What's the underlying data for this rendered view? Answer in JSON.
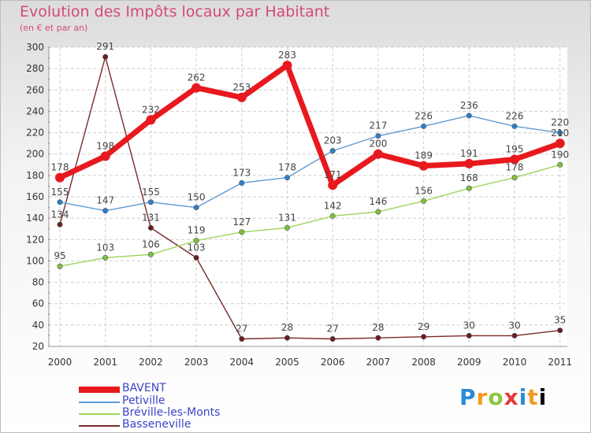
{
  "chart_data": {
    "type": "line",
    "title": "Evolution des Impôts locaux par Habitant",
    "subtitle": "(en € et par an)",
    "xlabel": "",
    "ylabel": "",
    "ylim": [
      20,
      300
    ],
    "yticks": [
      20,
      40,
      60,
      80,
      100,
      120,
      140,
      160,
      180,
      200,
      220,
      240,
      260,
      280,
      300
    ],
    "categories": [
      "2000",
      "2001",
      "2002",
      "2003",
      "2004",
      "2005",
      "2006",
      "2007",
      "2008",
      "2009",
      "2010",
      "2011"
    ],
    "legend_position": "bottom-left",
    "series": [
      {
        "name": "BAVENT",
        "color": "#e8191e",
        "values": [
          178,
          198,
          232,
          262,
          253,
          283,
          171,
          200,
          189,
          191,
          195,
          210
        ]
      },
      {
        "name": "Petiville",
        "color": "#5b9bd5",
        "values": [
          155,
          147,
          155,
          150,
          173,
          178,
          203,
          217,
          226,
          236,
          226,
          220
        ]
      },
      {
        "name": "Bréville-les-Monts",
        "color": "#9ed45a",
        "values": [
          95,
          103,
          106,
          119,
          127,
          131,
          142,
          146,
          156,
          168,
          178,
          190
        ]
      },
      {
        "name": "Basseneville",
        "color": "#7a2a2a",
        "values": [
          134,
          291,
          131,
          103,
          27,
          28,
          27,
          28,
          29,
          30,
          30,
          35
        ]
      }
    ]
  },
  "branding": {
    "logo_letters": [
      "P",
      "r",
      "o",
      "x",
      "i",
      "t",
      "i"
    ]
  }
}
